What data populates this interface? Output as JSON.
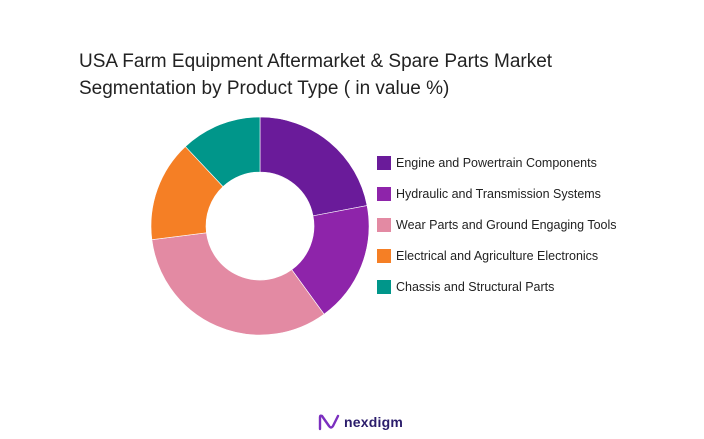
{
  "title_lines": [
    "USA Farm Equipment Aftermarket & Spare Parts Market",
    "Segmentation by Product Type ( in value %)"
  ],
  "chart_data": {
    "type": "pie",
    "subtype": "donut",
    "title": "USA Farm Equipment Aftermarket & Spare Parts Market Segmentation by Product Type ( in value %)",
    "unit": "%",
    "legend_position": "right",
    "series": [
      {
        "name": "Engine and Powertrain Components",
        "value": 22,
        "color": "#6a1b9a"
      },
      {
        "name": "Hydraulic and Transmission Systems",
        "value": 18,
        "color": "#8e24aa"
      },
      {
        "name": "Wear Parts and Ground Engaging Tools",
        "value": 33,
        "color": "#e38aa3"
      },
      {
        "name": "Electrical and Agriculture Electronics",
        "value": 15,
        "color": "#f57f25"
      },
      {
        "name": "Chassis and Structural Parts",
        "value": 12,
        "color": "#00968a"
      }
    ]
  },
  "brand": {
    "name": "nexdigm",
    "icon": "nexdigm-logo-icon",
    "color": "#2b1d6b"
  }
}
